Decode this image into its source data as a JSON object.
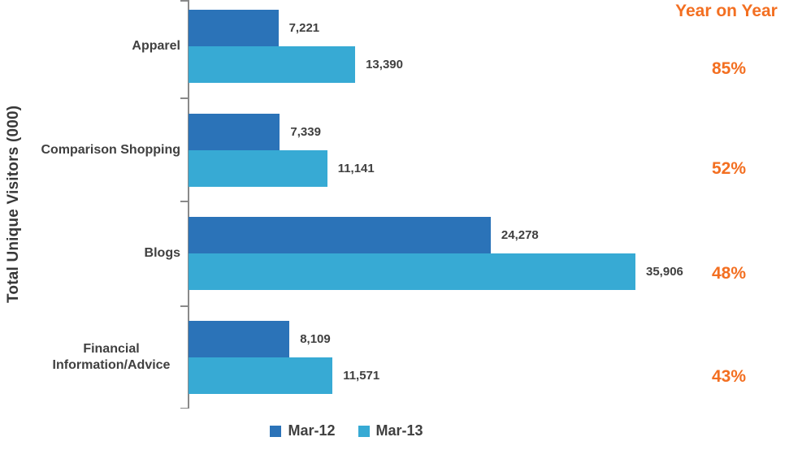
{
  "chart_data": {
    "type": "bar",
    "orientation": "horizontal",
    "ylabel": "Total Unique Visitors (000)",
    "categories": [
      "Apparel",
      "Comparison Shopping",
      "Blogs",
      "Financial Information/Advice"
    ],
    "series": [
      {
        "name": "Mar-12",
        "color": "#2b73b8",
        "values": [
          7221,
          7339,
          24278,
          8109
        ]
      },
      {
        "name": "Mar-13",
        "color": "#37aad4",
        "values": [
          13390,
          11141,
          35906,
          11571
        ]
      }
    ],
    "value_labels": [
      [
        "7,221",
        "7,339",
        "24,278",
        "8,109"
      ],
      [
        "13,390",
        "11,141",
        "35,906",
        "11,571"
      ]
    ],
    "yoy_header": "Year on Year",
    "yoy_values": [
      "85%",
      "52%",
      "48%",
      "43%"
    ],
    "legend": [
      "Mar-12",
      "Mar-13"
    ],
    "colors": {
      "accent_orange": "#f36f21",
      "axis_gray": "#8a8a8a",
      "label_gray": "#404040"
    },
    "axis": {
      "grid": false,
      "x_axis_labels_visible": false,
      "legend_position": "bottom-center"
    }
  }
}
